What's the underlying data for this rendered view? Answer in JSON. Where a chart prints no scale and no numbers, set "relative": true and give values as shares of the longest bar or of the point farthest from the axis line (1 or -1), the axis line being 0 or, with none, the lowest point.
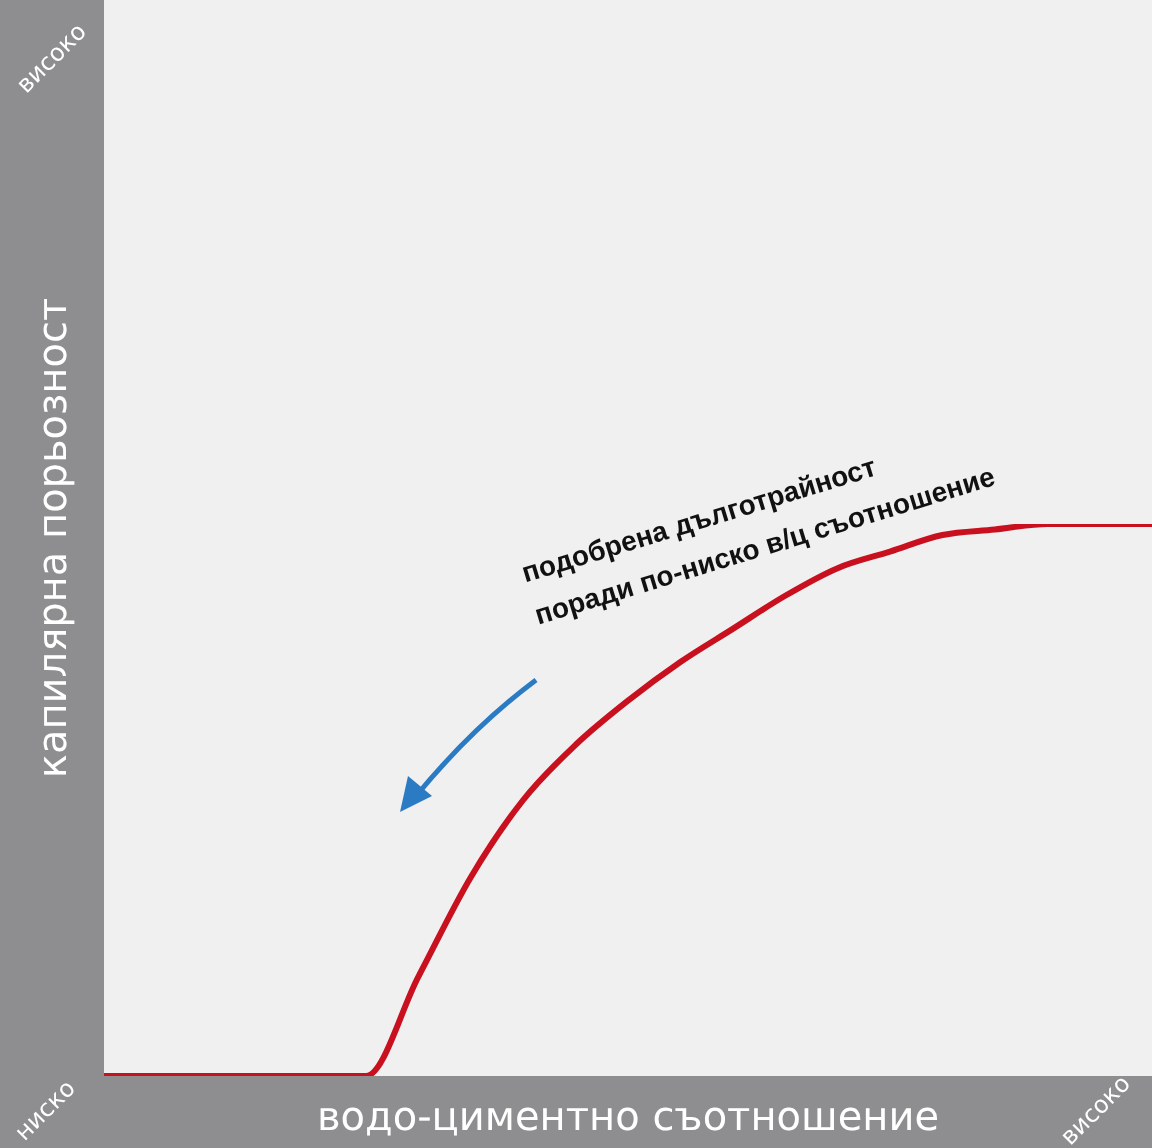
{
  "chart_data": {
    "type": "line",
    "relative": true,
    "xlabel": "водо-циментно съотношение",
    "ylabel": "капилярна порьозност",
    "categories": [
      null,
      null,
      null,
      null,
      null,
      null,
      null,
      null,
      null,
      null,
      null,
      null,
      null,
      null,
      null,
      null,
      null,
      null,
      null,
      null,
      null
    ],
    "series": [
      {
        "color": "#c8101e",
        "values": [
          0,
          0,
          0,
          0,
          0,
          0,
          0.18,
          0.36,
          0.5,
          0.6,
          0.68,
          0.75,
          0.81,
          0.87,
          0.92,
          0.95,
          0.98,
          0.99,
          1,
          1,
          1
        ]
      }
    ],
    "annotations": [
      "високо",
      "ниско",
      "високо",
      "подобрена дълготрайност\nпоради по-ниско в/ц съотношение"
    ],
    "marker": "none",
    "line_style": "solid"
  }
}
